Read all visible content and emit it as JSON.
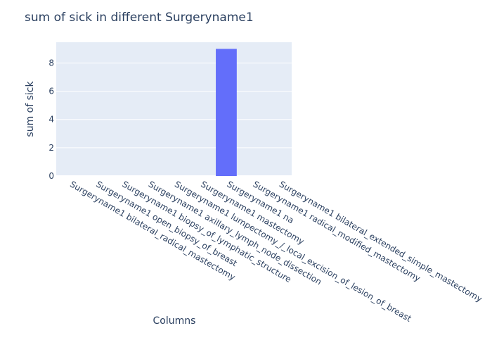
{
  "chart_data": {
    "type": "bar",
    "title": "sum of sick in different Surgeryname1",
    "xlabel": "Columns",
    "ylabel": "sum of sick",
    "categories": [
      "Surgeryname1 bilateral_radical_mastectomy",
      "Surgeryname1 open_biopsy_of_breast",
      "Surgeryname1 biopsy_of_lymphatic_structure",
      "Surgeryname1 axillary_lymph_node_dissection",
      "Surgeryname1 lumpectomy_/_local_excision_of_lesion_of_breast",
      "Surgeryname1 mastectomy",
      "Surgeryname1 na",
      "Surgeryname1 radical_modified_mastectomy",
      "Surgeryname1 bilateral_extended_simple_mastectomy"
    ],
    "values": [
      0,
      0,
      0,
      0,
      0,
      0,
      9,
      0,
      0
    ],
    "ylim": [
      0,
      9.47
    ],
    "yticks": [
      0,
      2,
      4,
      6,
      8
    ],
    "grid": true,
    "bar_color": "#636efa",
    "plot_bg": "#e5ecf6"
  }
}
